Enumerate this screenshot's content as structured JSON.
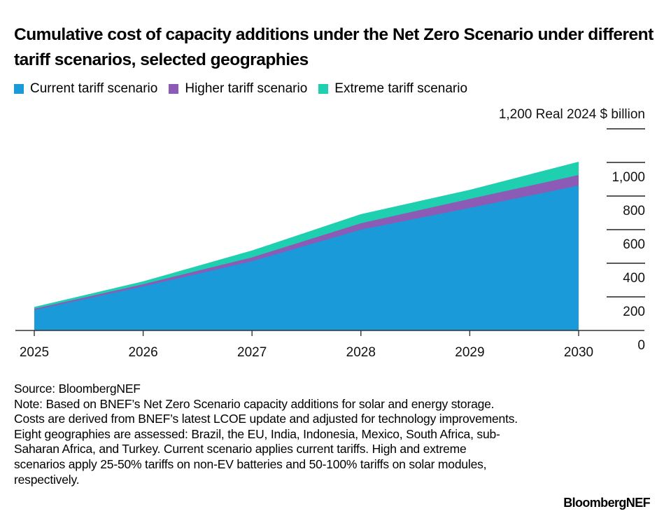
{
  "chart_data": {
    "type": "area",
    "stacked": true,
    "title": "Cumulative cost of capacity additions under the Net Zero Scenario under different tariff scenarios, selected geographies",
    "xlabel": "",
    "ylabel": "Real 2024 $ billion",
    "x": [
      "2025",
      "2026",
      "2027",
      "2028",
      "2029",
      "2030"
    ],
    "ylim": [
      0,
      1200
    ],
    "yticks": [
      0,
      200,
      400,
      600,
      800,
      1000,
      1200
    ],
    "ytick_labels": [
      "0",
      "200",
      "400",
      "600",
      "800",
      "1,000",
      "1,200"
    ],
    "y_unit_label": "Real 2024 $ billion",
    "legend_position": "top-left",
    "grid": true,
    "series": [
      {
        "name": "Current tariff scenario",
        "color": "#1a9ad9",
        "values": [
          121,
          262,
          412,
          600,
          729,
          862
        ]
      },
      {
        "name": "Higher tariff scenario",
        "color": "#8c5bb5",
        "values": [
          129,
          275,
          435,
          638,
          783,
          925
        ]
      },
      {
        "name": "Extreme tariff scenario",
        "color": "#1ecfb0",
        "values": [
          140,
          292,
          476,
          692,
          837,
          1004
        ]
      }
    ],
    "series_note": "values are cumulative totals (top of each layer) for each scenario"
  },
  "legend": {
    "items": [
      {
        "label": "Current tariff scenario",
        "color": "#1a9ad9"
      },
      {
        "label": "Higher tariff scenario",
        "color": "#8c5bb5"
      },
      {
        "label": "Extreme tariff scenario",
        "color": "#1ecfb0"
      }
    ]
  },
  "footer": {
    "source": "Source: BloombergNEF",
    "note": "Note: Based on BNEF’s Net Zero Scenario capacity additions for solar and energy storage. Costs are derived from BNEF’s latest LCOE update and adjusted for technology improvements. Eight geographies are assessed: Brazil, the EU, India, Indonesia, Mexico, South Africa, sub-Saharan Africa, and Turkey. Current scenario applies current tariffs. High and extreme scenarios apply 25-50% tariffs on non-EV batteries and 50-100% tariffs on solar modules, respectively."
  },
  "logo": "BloombergNEF"
}
